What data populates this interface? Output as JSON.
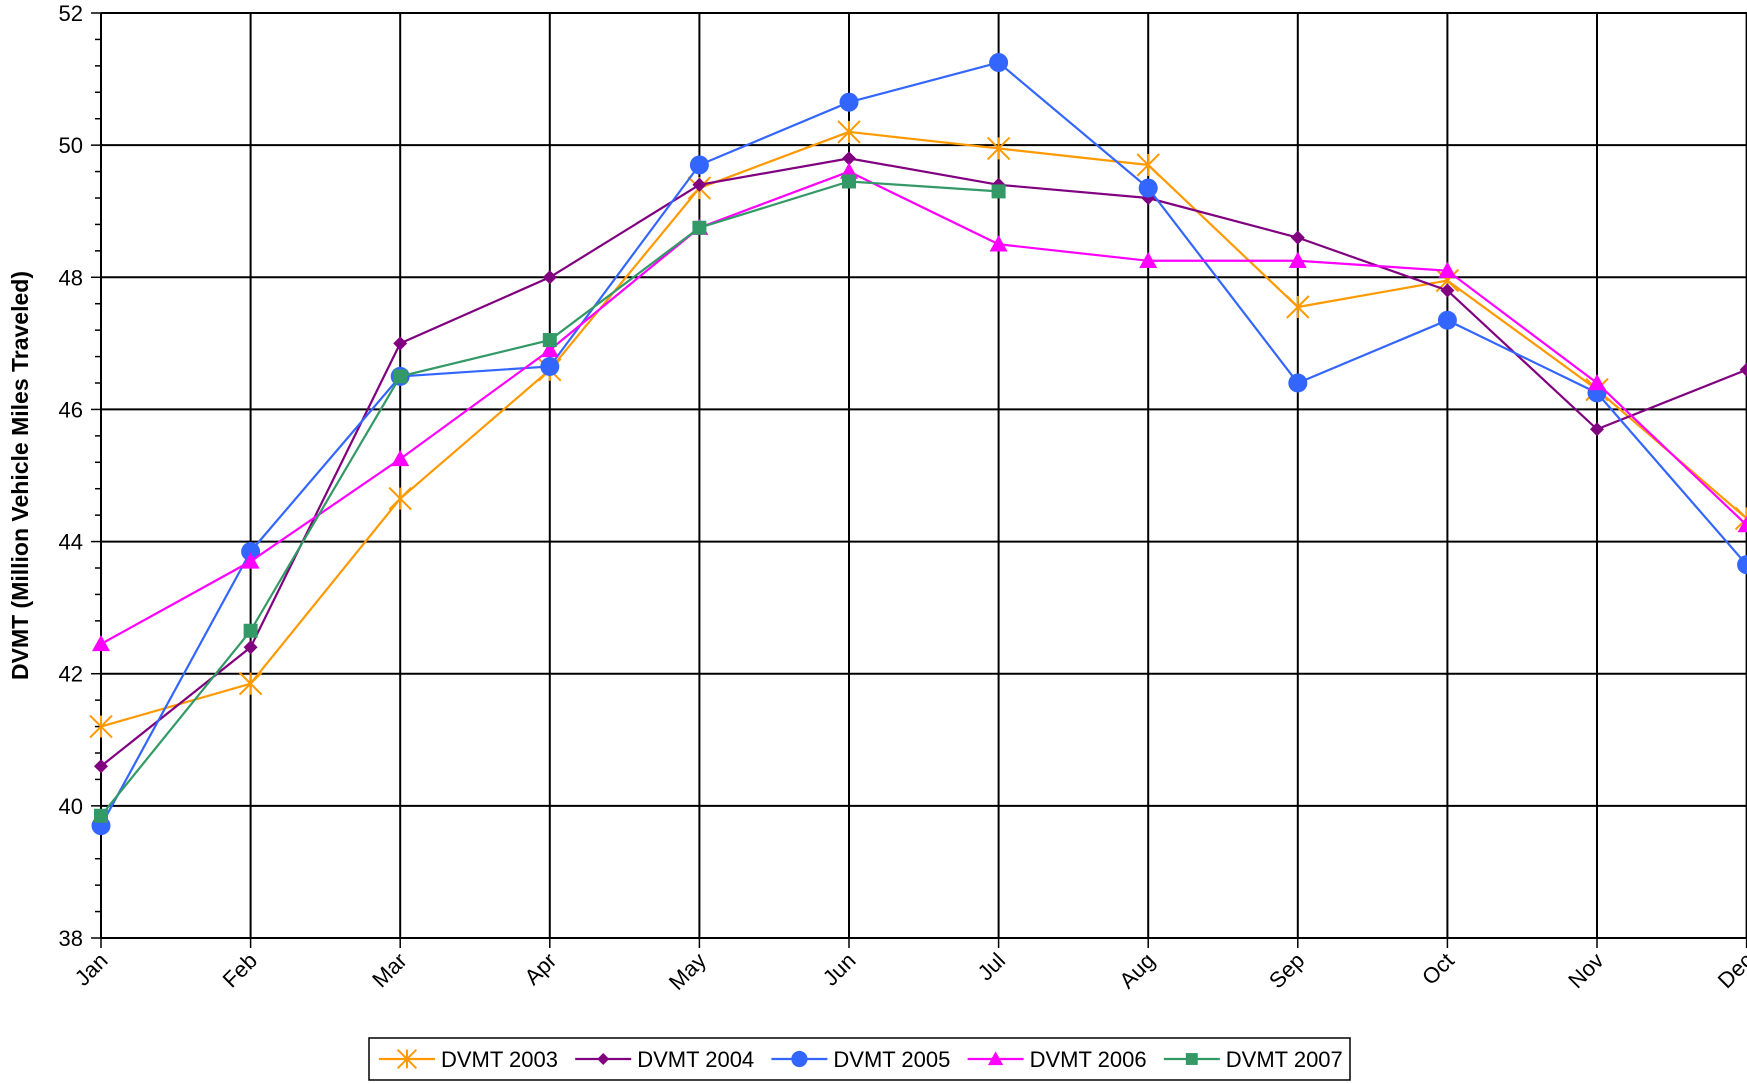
{
  "chart_data": {
    "type": "line",
    "title": "",
    "xlabel": "",
    "ylabel": "DVMT (Million Vehicle Miles Traveled)",
    "ylim": [
      38,
      52
    ],
    "y_major_step": 2,
    "y_minor_step": 0.4,
    "y_tick_labels": [
      "38",
      "40",
      "42",
      "44",
      "46",
      "48",
      "50",
      "52"
    ],
    "grid": "on",
    "legend_position": "bottom",
    "categories": [
      "Jan",
      "Feb",
      "Mar",
      "Apr",
      "May",
      "Jun",
      "Jul",
      "Aug",
      "Sep",
      "Oct",
      "Nov",
      "Dec"
    ],
    "series": [
      {
        "name": "DVMT 2003",
        "color": "#ff9900",
        "marker": "asterisk",
        "values": [
          41.2,
          41.85,
          44.65,
          46.6,
          49.35,
          50.2,
          49.95,
          49.7,
          47.55,
          47.95,
          46.3,
          44.35
        ]
      },
      {
        "name": "DVMT 2004",
        "color": "#800080",
        "marker": "diamond",
        "values": [
          40.6,
          42.4,
          47.0,
          48.0,
          49.4,
          49.8,
          49.4,
          49.2,
          48.6,
          47.8,
          45.7,
          46.6
        ]
      },
      {
        "name": "DVMT 2005",
        "color": "#3366ff",
        "marker": "circle",
        "values": [
          39.7,
          43.85,
          46.5,
          46.65,
          49.7,
          50.65,
          51.25,
          49.35,
          46.4,
          47.35,
          46.25,
          43.65
        ]
      },
      {
        "name": "DVMT 2006",
        "color": "#ff00ff",
        "marker": "triangle",
        "values": [
          42.45,
          43.7,
          45.25,
          46.9,
          48.75,
          49.6,
          48.5,
          48.25,
          48.25,
          48.1,
          46.4,
          44.25
        ]
      },
      {
        "name": "DVMT 2007",
        "color": "#339966",
        "marker": "square",
        "values": [
          39.85,
          42.65,
          46.5,
          47.05,
          48.75,
          49.45,
          49.3,
          null,
          null,
          null,
          null,
          null
        ]
      }
    ]
  }
}
